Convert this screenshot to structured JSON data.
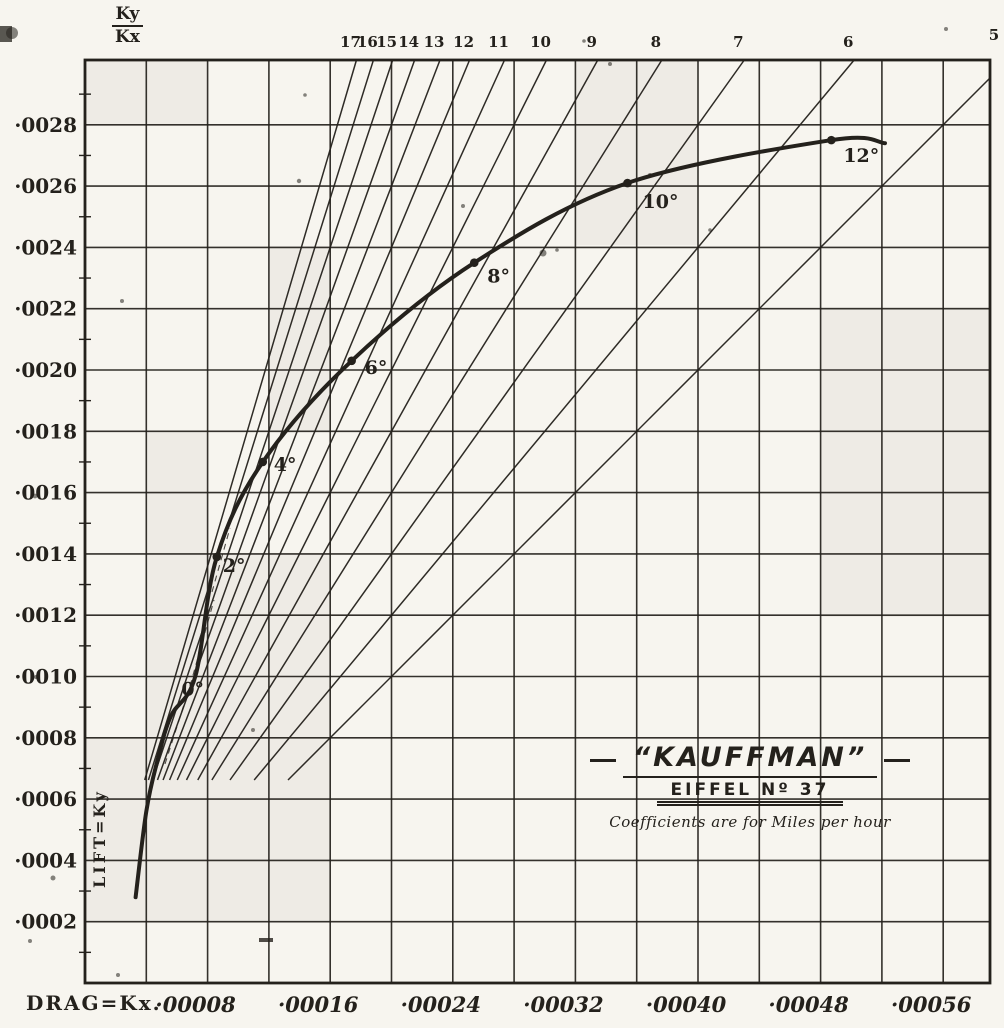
{
  "labels": {
    "ratio_numerator": "Ky",
    "ratio_denominator": "Kx",
    "lift": "LIFT=Ky",
    "drag": "DRAG=Kx."
  },
  "title_block": {
    "title": "“KAUFFMAN”",
    "subtitle": "EIFFEL Nº 37",
    "note": "Coefficients are for Miles per hour"
  },
  "chart_data": {
    "type": "line",
    "title": "KAUFFMAN (Eiffel No. 37) wing polar: lift coefficient Ky vs drag coefficient Kx with Ky/Kx ratio fan lines",
    "xlabel": "DRAG=Kx",
    "ylabel": "LIFT=Ky",
    "xlim": [
      0,
      0.00059
    ],
    "ylim": [
      0,
      0.003012
    ],
    "x_grid_step": 4e-05,
    "y_grid_step": 0.0002,
    "x_tick_labels": [
      "·00008",
      "·00016",
      "·00024",
      "·00032",
      "·00040",
      "·00048",
      "·00056"
    ],
    "x_tick_values": [
      8e-05,
      0.00016,
      0.00024,
      0.00032,
      0.0004,
      0.00048,
      0.00056
    ],
    "y_tick_labels": [
      "·0002",
      "·0004",
      "·0006",
      "·0008",
      "·0010",
      "·0012",
      "·0014",
      "·0016",
      "·0018",
      "·0020",
      "·0022",
      "·0024",
      "·0026",
      "·0028"
    ],
    "y_tick_values": [
      0.0002,
      0.0004,
      0.0006,
      0.0008,
      0.001,
      0.0012,
      0.0014,
      0.0016,
      0.0018,
      0.002,
      0.0022,
      0.0024,
      0.0026,
      0.0028
    ],
    "ratio_lines": [
      17,
      16,
      15,
      14,
      13,
      12,
      11,
      10,
      9,
      8,
      7,
      6,
      5
    ],
    "curve": [
      [
        3.3e-05,
        0.00028
      ],
      [
        4e-05,
        0.00056
      ],
      [
        4.7e-05,
        0.00072
      ],
      [
        5.6e-05,
        0.00087
      ],
      [
        7.2e-05,
        0.001
      ],
      [
        8.6e-05,
        0.00139
      ],
      [
        0.000116,
        0.0017
      ],
      [
        0.000174,
        0.00203
      ],
      [
        0.000254,
        0.00235
      ],
      [
        0.000354,
        0.00261
      ],
      [
        0.000487,
        0.00275
      ],
      [
        0.000522,
        0.00274
      ]
    ],
    "angle_points": [
      {
        "label": "0°",
        "x": 7.2e-05,
        "y": 0.001
      },
      {
        "label": "2°",
        "x": 8.6e-05,
        "y": 0.00139
      },
      {
        "label": "4°",
        "x": 0.000116,
        "y": 0.0017
      },
      {
        "label": "6°",
        "x": 0.000174,
        "y": 0.00203
      },
      {
        "label": "8°",
        "x": 0.000254,
        "y": 0.00235
      },
      {
        "label": "10°",
        "x": 0.000354,
        "y": 0.00261
      },
      {
        "label": "12°",
        "x": 0.000487,
        "y": 0.00275
      }
    ],
    "legend_position": "none",
    "grid": true
  },
  "ink_color": "#24211c",
  "paper_color": "#f7f5ef"
}
